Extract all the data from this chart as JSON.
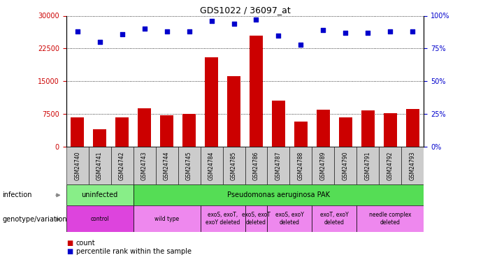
{
  "title": "GDS1022 / 36097_at",
  "samples": [
    "GSM24740",
    "GSM24741",
    "GSM24742",
    "GSM24743",
    "GSM24744",
    "GSM24745",
    "GSM24784",
    "GSM24785",
    "GSM24786",
    "GSM24787",
    "GSM24788",
    "GSM24789",
    "GSM24790",
    "GSM24791",
    "GSM24792",
    "GSM24793"
  ],
  "counts": [
    6800,
    4000,
    6700,
    8800,
    7200,
    7500,
    20500,
    16200,
    25500,
    10500,
    5800,
    8500,
    6700,
    8300,
    7700,
    8700
  ],
  "percentiles": [
    88,
    80,
    86,
    90,
    88,
    88,
    96,
    94,
    97,
    85,
    78,
    89,
    87,
    87,
    88,
    88
  ],
  "bar_color": "#cc0000",
  "dot_color": "#0000cc",
  "ylim_left": [
    0,
    30000
  ],
  "ylim_right": [
    0,
    100
  ],
  "yticks_left": [
    0,
    7500,
    15000,
    22500,
    30000
  ],
  "yticks_right": [
    0,
    25,
    50,
    75,
    100
  ],
  "infection_groups": [
    {
      "label": "uninfected",
      "start": 0,
      "end": 3,
      "color": "#88ee88"
    },
    {
      "label": "Pseudomonas aeruginosa PAK",
      "start": 3,
      "end": 16,
      "color": "#55dd55"
    }
  ],
  "genotype_groups": [
    {
      "label": "control",
      "start": 0,
      "end": 3,
      "color": "#dd44dd"
    },
    {
      "label": "wild type",
      "start": 3,
      "end": 6,
      "color": "#ee88ee"
    },
    {
      "label": "exoS, exoT,\nexoY deleted",
      "start": 6,
      "end": 8,
      "color": "#ee88ee"
    },
    {
      "label": "exoS, exoT\ndeleted",
      "start": 8,
      "end": 9,
      "color": "#ee88ee"
    },
    {
      "label": "exoS, exoY\ndeleted",
      "start": 9,
      "end": 11,
      "color": "#ee88ee"
    },
    {
      "label": "exoT, exoY\ndeleted",
      "start": 11,
      "end": 13,
      "color": "#ee88ee"
    },
    {
      "label": "needle complex\ndeleted",
      "start": 13,
      "end": 16,
      "color": "#ee88ee"
    }
  ],
  "infection_label": "infection",
  "genotype_label": "genotype/variation",
  "legend_count": "count",
  "legend_percentile": "percentile rank within the sample",
  "xtick_bg": "#cccccc"
}
